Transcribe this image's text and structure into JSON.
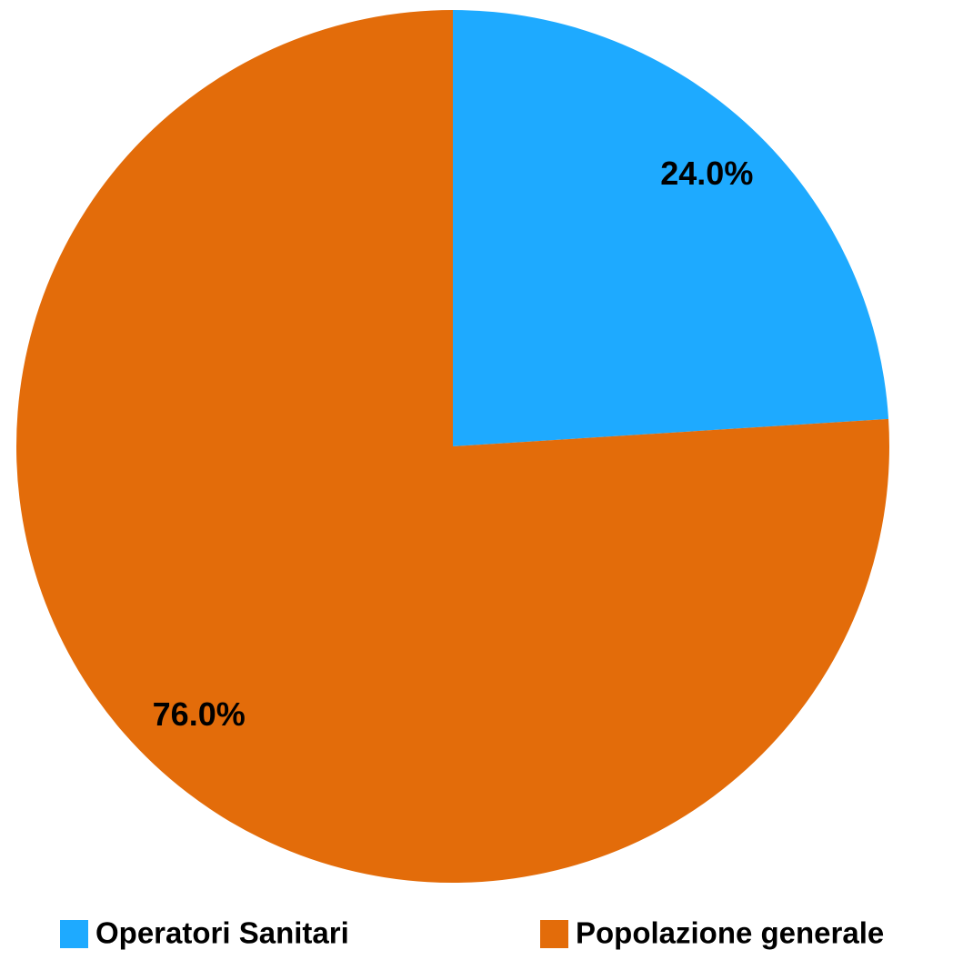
{
  "chart_data": {
    "type": "pie",
    "categories": [
      "Operatori Sanitari",
      "Popolazione generale"
    ],
    "values": [
      24.0,
      76.0
    ],
    "value_labels": [
      "24.0%",
      "76.0%"
    ],
    "colors": [
      "#1eaaff",
      "#e36c0a"
    ],
    "legend": "bottom"
  }
}
